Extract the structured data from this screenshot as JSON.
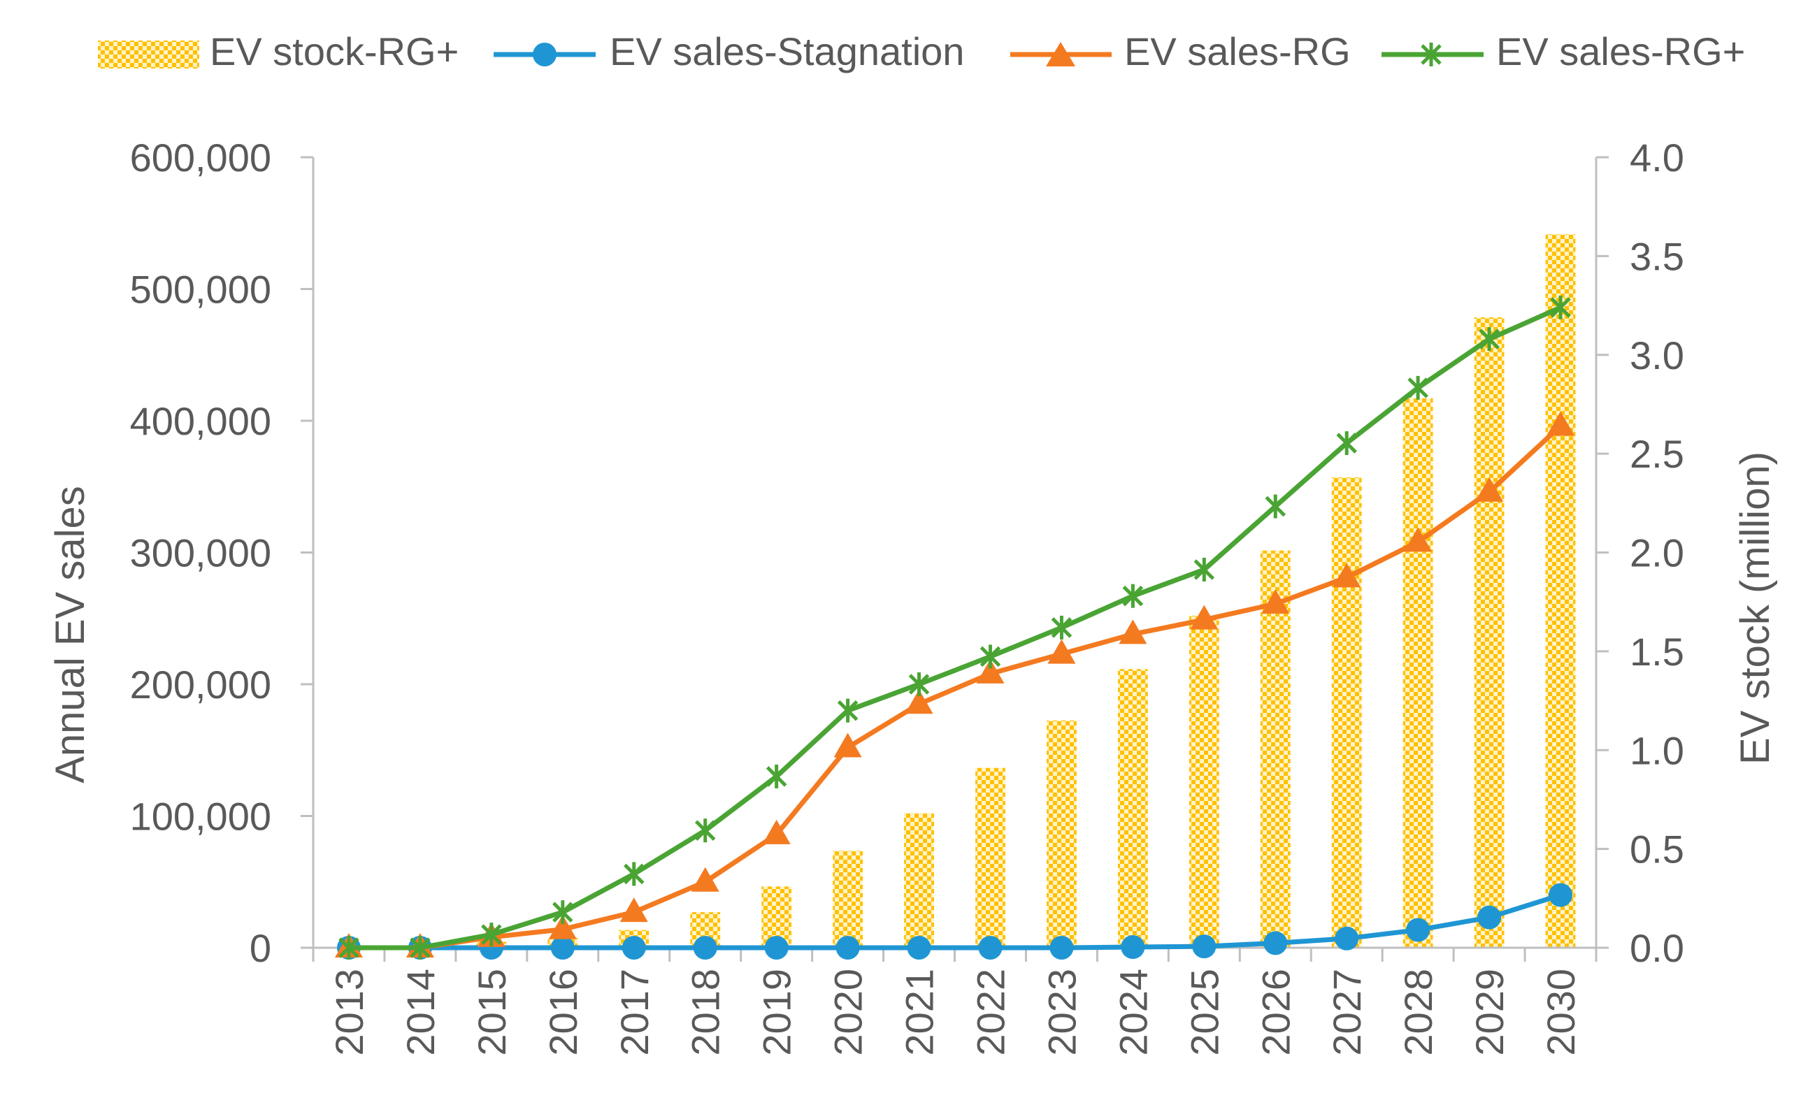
{
  "chart_data": {
    "type": "bar+line",
    "title": "",
    "categories": [
      "2013",
      "2014",
      "2015",
      "2016",
      "2017",
      "2018",
      "2019",
      "2020",
      "2021",
      "2022",
      "2023",
      "2024",
      "2025",
      "2026",
      "2027",
      "2028",
      "2029",
      "2030"
    ],
    "legend": {
      "placement": "top",
      "items": [
        {
          "key": "stock",
          "label": "EV stock-RG+"
        },
        {
          "key": "stagnation",
          "label": "EV sales-Stagnation"
        },
        {
          "key": "rg",
          "label": "EV sales-RG"
        },
        {
          "key": "rgplus",
          "label": "EV sales-RG+"
        }
      ]
    },
    "y_left": {
      "label": "Annual EV sales",
      "min": 0,
      "max": 600000,
      "ticks": [
        {
          "value": 0,
          "label": "0"
        },
        {
          "value": 100000,
          "label": "100,000"
        },
        {
          "value": 200000,
          "label": "200,000"
        },
        {
          "value": 300000,
          "label": "300,000"
        },
        {
          "value": 400000,
          "label": "400,000"
        },
        {
          "value": 500000,
          "label": "500,000"
        },
        {
          "value": 600000,
          "label": "600,000"
        }
      ]
    },
    "y_right": {
      "label": "EV stock (million)",
      "min": 0,
      "max": 4.0,
      "ticks": [
        {
          "value": 0.0,
          "label": "0.0"
        },
        {
          "value": 0.5,
          "label": "0.5"
        },
        {
          "value": 1.0,
          "label": "1.0"
        },
        {
          "value": 1.5,
          "label": "1.5"
        },
        {
          "value": 2.0,
          "label": "2.0"
        },
        {
          "value": 2.5,
          "label": "2.5"
        },
        {
          "value": 3.0,
          "label": "3.0"
        },
        {
          "value": 3.5,
          "label": "3.5"
        },
        {
          "value": 4.0,
          "label": "4.0"
        }
      ]
    },
    "bars": {
      "key": "stock",
      "name": "EV stock-RG+",
      "axis": "right",
      "color": "#FFC000",
      "values": [
        0.005,
        0.01,
        0.03,
        0.05,
        0.09,
        0.18,
        0.31,
        0.49,
        0.68,
        0.91,
        1.15,
        1.41,
        1.68,
        2.01,
        2.38,
        2.78,
        3.19,
        3.61
      ]
    },
    "series": [
      {
        "key": "stagnation",
        "name": "EV sales-Stagnation",
        "axis": "left",
        "color": "#1F96D3",
        "marker": "circle",
        "values": [
          0,
          0,
          0,
          0,
          0,
          0,
          0,
          0,
          0,
          0,
          0,
          500,
          1000,
          3500,
          7000,
          13500,
          23000,
          40000
        ]
      },
      {
        "key": "rg",
        "name": "EV sales-RG",
        "axis": "left",
        "color": "#F47A20",
        "marker": "triangle",
        "values": [
          0,
          0,
          8000,
          14000,
          27000,
          50000,
          86000,
          152000,
          185000,
          208000,
          223000,
          238000,
          249000,
          261000,
          281000,
          308000,
          346000,
          396000
        ]
      },
      {
        "key": "rgplus",
        "name": "EV sales-RG+",
        "axis": "left",
        "color": "#4AA434",
        "marker": "star",
        "values": [
          0,
          0,
          10000,
          27000,
          56000,
          89000,
          130000,
          180000,
          200000,
          221000,
          243000,
          267000,
          287000,
          335000,
          383000,
          425000,
          462000,
          486000
        ]
      }
    ]
  }
}
